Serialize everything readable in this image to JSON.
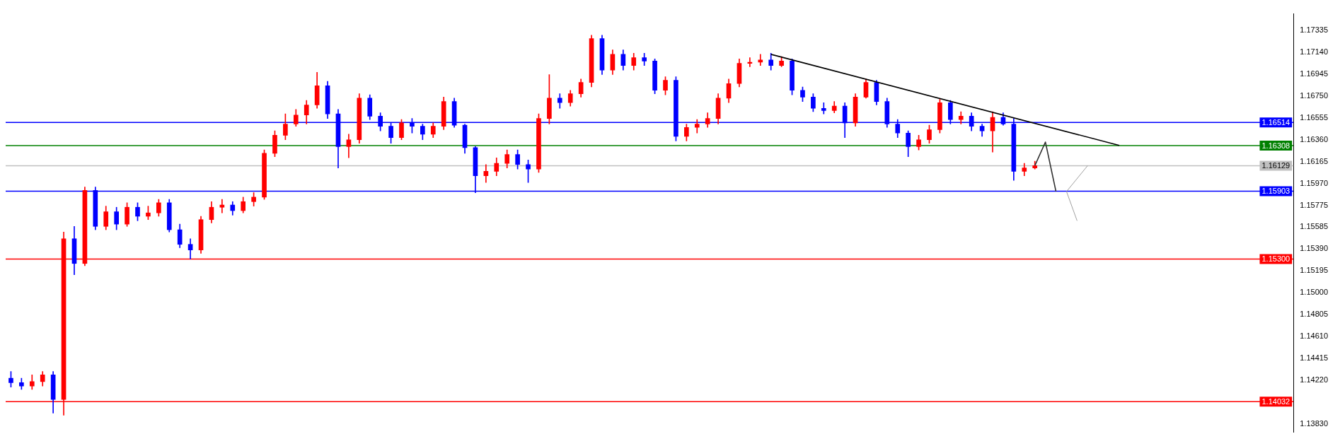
{
  "chart_data": {
    "type": "candlestick",
    "categories": [
      null,
      null,
      null,
      null,
      null,
      null,
      null,
      null,
      null,
      null,
      null,
      null,
      null,
      null,
      null,
      null,
      null,
      null,
      null,
      null,
      null,
      null,
      null,
      null,
      null,
      null,
      null,
      null,
      null,
      null,
      null,
      null,
      null,
      null,
      null,
      null,
      null,
      null,
      null,
      null,
      null,
      null,
      null,
      null,
      null,
      null,
      null,
      null,
      null,
      null,
      null,
      null,
      null,
      null,
      null,
      null,
      null,
      null,
      null,
      null,
      null,
      null,
      null,
      null,
      null,
      null,
      null,
      null,
      null,
      null,
      null,
      null,
      null,
      null,
      null,
      null,
      null,
      null,
      null,
      null,
      null,
      null,
      null,
      null,
      null,
      null,
      null,
      null,
      null,
      null,
      null,
      null,
      null,
      null,
      null,
      null,
      null,
      null,
      null,
      null,
      null,
      null,
      null,
      null,
      null,
      null,
      null,
      null,
      null,
      null,
      null,
      null,
      null,
      null,
      null,
      null,
      null,
      null,
      null,
      null,
      null,
      null
    ],
    "ohlc": [
      [
        1.1424,
        1.143,
        1.1416,
        1.142
      ],
      [
        1.142,
        1.1424,
        1.1414,
        1.1417
      ],
      [
        1.1417,
        1.1427,
        1.1414,
        1.1421
      ],
      [
        1.1421,
        1.143,
        1.1417,
        1.1427
      ],
      [
        1.1427,
        1.143,
        1.1393,
        1.1405
      ],
      [
        1.1405,
        1.1554,
        1.1391,
        1.1548
      ],
      [
        1.1548,
        1.1559,
        1.1516,
        1.1526
      ],
      [
        1.1526,
        1.1594,
        1.1524,
        1.1591
      ],
      [
        1.1591,
        1.1594,
        1.1556,
        1.1559
      ],
      [
        1.1559,
        1.1577,
        1.1556,
        1.1572
      ],
      [
        1.1572,
        1.1576,
        1.1556,
        1.1561
      ],
      [
        1.1561,
        1.158,
        1.1559,
        1.1576
      ],
      [
        1.1576,
        1.158,
        1.1564,
        1.1568
      ],
      [
        1.1568,
        1.1577,
        1.1565,
        1.1571
      ],
      [
        1.1571,
        1.1583,
        1.1568,
        1.158
      ],
      [
        1.158,
        1.1583,
        1.1554,
        1.1556
      ],
      [
        1.1556,
        1.1561,
        1.154,
        1.1543
      ],
      [
        1.1543,
        1.1548,
        1.153,
        1.1538
      ],
      [
        1.1538,
        1.1568,
        1.1535,
        1.1565
      ],
      [
        1.1565,
        1.1581,
        1.1562,
        1.1576
      ],
      [
        1.1576,
        1.1583,
        1.1571,
        1.1578
      ],
      [
        1.1578,
        1.1581,
        1.1569,
        1.1573
      ],
      [
        1.1573,
        1.1585,
        1.1571,
        1.1581
      ],
      [
        1.1581,
        1.1589,
        1.1577,
        1.1585
      ],
      [
        1.1585,
        1.1627,
        1.1583,
        1.1624
      ],
      [
        1.1624,
        1.1644,
        1.1621,
        1.164
      ],
      [
        1.164,
        1.1659,
        1.1636,
        1.165
      ],
      [
        1.165,
        1.1663,
        1.1648,
        1.1658
      ],
      [
        1.1658,
        1.1671,
        1.165,
        1.1667
      ],
      [
        1.1667,
        1.1696,
        1.1664,
        1.1684
      ],
      [
        1.1684,
        1.1688,
        1.1655,
        1.1659
      ],
      [
        1.1659,
        1.1663,
        1.1611,
        1.163
      ],
      [
        1.163,
        1.1641,
        1.162,
        1.1636
      ],
      [
        1.1636,
        1.1677,
        1.1633,
        1.1673
      ],
      [
        1.1673,
        1.1676,
        1.1654,
        1.1657
      ],
      [
        1.1657,
        1.166,
        1.1644,
        1.1648
      ],
      [
        1.1648,
        1.1651,
        1.1633,
        1.1638
      ],
      [
        1.1638,
        1.1654,
        1.1636,
        1.1651
      ],
      [
        1.1651,
        1.1655,
        1.1642,
        1.1648
      ],
      [
        1.1648,
        1.165,
        1.1636,
        1.1641
      ],
      [
        1.1641,
        1.1651,
        1.1638,
        1.1648
      ],
      [
        1.1648,
        1.1674,
        1.1645,
        1.167
      ],
      [
        1.167,
        1.1673,
        1.1647,
        1.1649
      ],
      [
        1.1649,
        1.165,
        1.1624,
        1.1629
      ],
      [
        1.1629,
        1.163,
        1.1589,
        1.1604
      ],
      [
        1.1604,
        1.1614,
        1.1598,
        1.1608
      ],
      [
        1.1608,
        1.162,
        1.1604,
        1.1615
      ],
      [
        1.1615,
        1.1627,
        1.1611,
        1.1623
      ],
      [
        1.1623,
        1.1627,
        1.161,
        1.1614
      ],
      [
        1.1614,
        1.1618,
        1.1598,
        1.161
      ],
      [
        1.161,
        1.1659,
        1.1607,
        1.1655
      ],
      [
        1.1655,
        1.1694,
        1.165,
        1.1673
      ],
      [
        1.1673,
        1.1677,
        1.1664,
        1.1669
      ],
      [
        1.1669,
        1.168,
        1.1666,
        1.1677
      ],
      [
        1.1677,
        1.169,
        1.1674,
        1.1687
      ],
      [
        1.1687,
        1.1729,
        1.1683,
        1.1726
      ],
      [
        1.1726,
        1.1729,
        1.1694,
        1.1698
      ],
      [
        1.1698,
        1.1716,
        1.1694,
        1.1712
      ],
      [
        1.1712,
        1.1716,
        1.1698,
        1.1702
      ],
      [
        1.1702,
        1.1713,
        1.1698,
        1.1709
      ],
      [
        1.1709,
        1.1713,
        1.1702,
        1.1706
      ],
      [
        1.1706,
        1.1708,
        1.1677,
        1.168
      ],
      [
        1.168,
        1.1692,
        1.1676,
        1.1689
      ],
      [
        1.1689,
        1.1692,
        1.1635,
        1.1639
      ],
      [
        1.1639,
        1.165,
        1.1635,
        1.1647
      ],
      [
        1.1647,
        1.1654,
        1.1642,
        1.165
      ],
      [
        1.165,
        1.166,
        1.1647,
        1.1655
      ],
      [
        1.1655,
        1.1677,
        1.165,
        1.1673
      ],
      [
        1.1673,
        1.169,
        1.1669,
        1.1686
      ],
      [
        1.1686,
        1.1708,
        1.1683,
        1.1704
      ],
      [
        1.1704,
        1.1709,
        1.1701,
        1.1705
      ],
      [
        1.1705,
        1.1712,
        1.1702,
        1.1707
      ],
      [
        1.1707,
        1.1713,
        1.1698,
        1.1702
      ],
      [
        1.1702,
        1.171,
        1.1701,
        1.1706
      ],
      [
        1.1706,
        1.1708,
        1.1676,
        1.168
      ],
      [
        1.168,
        1.1683,
        1.167,
        1.1674
      ],
      [
        1.1674,
        1.1677,
        1.1661,
        1.1664
      ],
      [
        1.1664,
        1.1669,
        1.1659,
        1.1662
      ],
      [
        1.1662,
        1.167,
        1.166,
        1.1666
      ],
      [
        1.1666,
        1.1669,
        1.1638,
        1.1651
      ],
      [
        1.1651,
        1.1677,
        1.1648,
        1.1674
      ],
      [
        1.1674,
        1.169,
        1.1673,
        1.1687
      ],
      [
        1.1687,
        1.1689,
        1.1667,
        1.167
      ],
      [
        1.167,
        1.1673,
        1.1647,
        1.165
      ],
      [
        1.165,
        1.1654,
        1.1638,
        1.1642
      ],
      [
        1.1642,
        1.1644,
        1.1621,
        1.163
      ],
      [
        1.163,
        1.164,
        1.1627,
        1.1636
      ],
      [
        1.1636,
        1.1649,
        1.1633,
        1.1645
      ],
      [
        1.1645,
        1.1672,
        1.1642,
        1.1669
      ],
      [
        1.1669,
        1.1671,
        1.165,
        1.1654
      ],
      [
        1.1654,
        1.1661,
        1.165,
        1.1657
      ],
      [
        1.1657,
        1.166,
        1.1644,
        1.1648
      ],
      [
        1.1648,
        1.165,
        1.1639,
        1.1644
      ],
      [
        1.1644,
        1.1661,
        1.1625,
        1.1656
      ],
      [
        1.1656,
        1.166,
        1.1649,
        1.165
      ],
      [
        1.165,
        1.1655,
        1.16,
        1.1608
      ],
      [
        1.1608,
        1.1615,
        1.1604,
        1.1611
      ],
      [
        1.1611,
        1.1617,
        1.161,
        1.1613
      ],
      null,
      null,
      null,
      null,
      null,
      null,
      null,
      null,
      null,
      null,
      null,
      null,
      null,
      null,
      null,
      null,
      null,
      null,
      null,
      null,
      null,
      null,
      null,
      null
    ],
    "colors": [
      "#0000ff",
      "#0000ff",
      "#ff0000",
      "#ff0000",
      "#0000ff",
      "#ff0000",
      "#0000ff",
      "#ff0000",
      "#0000ff",
      "#ff0000",
      "#0000ff",
      "#ff0000",
      "#0000ff",
      "#ff0000",
      "#ff0000",
      "#0000ff",
      "#0000ff",
      "#0000ff",
      "#ff0000",
      "#ff0000",
      "#ff0000",
      "#0000ff",
      "#ff0000",
      "#ff0000",
      "#ff0000",
      "#ff0000",
      "#ff0000",
      "#ff0000",
      "#ff0000",
      "#ff0000",
      "#0000ff",
      "#0000ff",
      "#ff0000",
      "#ff0000",
      "#0000ff",
      "#0000ff",
      "#0000ff",
      "#ff0000",
      "#0000ff",
      "#0000ff",
      "#ff0000",
      "#ff0000",
      "#0000ff",
      "#0000ff",
      "#0000ff",
      "#ff0000",
      "#ff0000",
      "#ff0000",
      "#0000ff",
      "#0000ff",
      "#ff0000",
      "#ff0000",
      "#0000ff",
      "#ff0000",
      "#ff0000",
      "#ff0000",
      "#0000ff",
      "#ff0000",
      "#0000ff",
      "#ff0000",
      "#0000ff",
      "#0000ff",
      "#ff0000",
      "#0000ff",
      "#ff0000",
      "#ff0000",
      "#ff0000",
      "#ff0000",
      "#ff0000",
      "#ff0000",
      "#ff0000",
      "#ff0000",
      "#0000ff",
      "#ff0000",
      "#0000ff",
      "#0000ff",
      "#0000ff",
      "#0000ff",
      "#ff0000",
      "#0000ff",
      "#ff0000",
      "#ff0000",
      "#0000ff",
      "#0000ff",
      "#0000ff",
      "#0000ff",
      "#ff0000",
      "#ff0000",
      "#ff0000",
      "#0000ff",
      "#ff0000",
      "#0000ff",
      "#0000ff",
      "#ff0000",
      "#0000ff",
      "#0000ff",
      "#ff0000",
      "#ff0000",
      null,
      null,
      null,
      null,
      null,
      null,
      null,
      null,
      null,
      null,
      null,
      null,
      null,
      null,
      null,
      null,
      null,
      null,
      null,
      null,
      null,
      null,
      null,
      null
    ],
    "series": [
      {
        "type": "line",
        "color": "#000000",
        "values": [
          null,
          null,
          null,
          null,
          null,
          null,
          null,
          null,
          null,
          null,
          null,
          null,
          null,
          null,
          null,
          null,
          null,
          null,
          null,
          null,
          null,
          null,
          null,
          null,
          null,
          null,
          null,
          null,
          null,
          null,
          null,
          null,
          null,
          null,
          null,
          null,
          null,
          null,
          null,
          null,
          null,
          null,
          null,
          null,
          null,
          null,
          null,
          null,
          null,
          null,
          null,
          null,
          null,
          null,
          null,
          null,
          null,
          null,
          null,
          null,
          null,
          null,
          null,
          null,
          null,
          null,
          null,
          null,
          null,
          null,
          null,
          null,
          1.1712,
          null,
          null,
          null,
          null,
          null,
          null,
          null,
          null,
          null,
          null,
          null,
          null,
          null,
          null,
          null,
          null,
          null,
          null,
          null,
          null,
          null,
          null,
          null,
          null,
          null,
          null,
          null,
          null,
          null,
          null,
          null,
          null,
          1.1631,
          null,
          null,
          null,
          null,
          null,
          null,
          null,
          null,
          null,
          null,
          null,
          null,
          null,
          null,
          null,
          null
        ]
      },
      {
        "type": "line",
        "color": "#303030",
        "values": [
          null,
          null,
          null,
          null,
          null,
          null,
          null,
          null,
          null,
          null,
          null,
          null,
          null,
          null,
          null,
          null,
          null,
          null,
          null,
          null,
          null,
          null,
          null,
          null,
          null,
          null,
          null,
          null,
          null,
          null,
          null,
          null,
          null,
          null,
          null,
          null,
          null,
          null,
          null,
          null,
          null,
          null,
          null,
          null,
          null,
          null,
          null,
          null,
          null,
          null,
          null,
          null,
          null,
          null,
          null,
          null,
          null,
          null,
          null,
          null,
          null,
          null,
          null,
          null,
          null,
          null,
          null,
          null,
          null,
          null,
          null,
          null,
          null,
          null,
          null,
          null,
          null,
          null,
          null,
          null,
          null,
          null,
          null,
          null,
          null,
          null,
          null,
          null,
          null,
          null,
          null,
          null,
          null,
          null,
          null,
          null,
          null,
          1.1613,
          1.1634,
          1.159,
          null,
          null,
          null,
          null,
          null,
          null,
          null,
          null,
          null,
          null,
          null,
          null,
          null,
          null,
          null,
          null,
          null,
          null,
          null,
          null,
          null,
          null
        ]
      },
      {
        "type": "line",
        "color": "#a0a0a0",
        "values": [
          null,
          null,
          null,
          null,
          null,
          null,
          null,
          null,
          null,
          null,
          null,
          null,
          null,
          null,
          null,
          null,
          null,
          null,
          null,
          null,
          null,
          null,
          null,
          null,
          null,
          null,
          null,
          null,
          null,
          null,
          null,
          null,
          null,
          null,
          null,
          null,
          null,
          null,
          null,
          null,
          null,
          null,
          null,
          null,
          null,
          null,
          null,
          null,
          null,
          null,
          null,
          null,
          null,
          null,
          null,
          null,
          null,
          null,
          null,
          null,
          null,
          null,
          null,
          null,
          null,
          null,
          null,
          null,
          null,
          null,
          null,
          null,
          null,
          null,
          null,
          null,
          null,
          null,
          null,
          null,
          null,
          null,
          null,
          null,
          null,
          null,
          null,
          null,
          null,
          null,
          null,
          null,
          null,
          null,
          null,
          null,
          null,
          null,
          null,
          null,
          1.159,
          null,
          1.1613,
          null,
          null,
          null,
          null,
          null,
          null,
          null,
          null,
          null,
          null,
          null,
          null,
          null,
          null,
          null,
          null,
          null,
          null,
          null
        ]
      },
      {
        "type": "line",
        "color": "#a0a0a0",
        "values": [
          null,
          null,
          null,
          null,
          null,
          null,
          null,
          null,
          null,
          null,
          null,
          null,
          null,
          null,
          null,
          null,
          null,
          null,
          null,
          null,
          null,
          null,
          null,
          null,
          null,
          null,
          null,
          null,
          null,
          null,
          null,
          null,
          null,
          null,
          null,
          null,
          null,
          null,
          null,
          null,
          null,
          null,
          null,
          null,
          null,
          null,
          null,
          null,
          null,
          null,
          null,
          null,
          null,
          null,
          null,
          null,
          null,
          null,
          null,
          null,
          null,
          null,
          null,
          null,
          null,
          null,
          null,
          null,
          null,
          null,
          null,
          null,
          null,
          null,
          null,
          null,
          null,
          null,
          null,
          null,
          null,
          null,
          null,
          null,
          null,
          null,
          null,
          null,
          null,
          null,
          null,
          null,
          null,
          null,
          null,
          null,
          null,
          null,
          null,
          null,
          1.159,
          1.1564,
          null,
          null,
          null,
          null,
          null,
          null,
          null,
          null,
          null,
          null,
          null,
          null,
          null,
          null,
          null,
          null,
          null,
          null,
          null,
          null
        ]
      }
    ],
    "ylim": [
      1.1376,
      1.1748
    ],
    "yticks": [
      1.17335,
      {
        "value": 1.1714,
        "label": "1.17140"
      },
      1.16945,
      {
        "value": 1.1675,
        "label": "1.16750"
      },
      1.16555,
      {
        "value": 1.1636,
        "label": "1.16360"
      },
      1.16165,
      {
        "value": 1.1597,
        "label": "1.15970"
      },
      1.15775,
      1.15585,
      {
        "value": 1.1539,
        "label": "1.15390"
      },
      1.15195,
      {
        "value": 1.15,
        "label": "1.15000"
      },
      1.14805,
      {
        "value": 1.1461,
        "label": "1.14610"
      },
      1.14415,
      {
        "value": 1.1422,
        "label": "1.14220"
      },
      {
        "value": 1.1383,
        "label": "1.13830"
      }
    ],
    "ref_lines": [
      {
        "axis": "y",
        "value": 1.16514,
        "label": "1.16514",
        "color": "#0000ff"
      },
      {
        "axis": "y",
        "value": 1.16308,
        "label": "1.16308",
        "color": "#008000"
      },
      {
        "axis": "y",
        "value": 1.16129,
        "label": "1.16129",
        "color": "#c0c0c0"
      },
      {
        "axis": "y",
        "value": 1.15903,
        "label": "1.15903",
        "color": "#0000ff"
      },
      {
        "axis": "y",
        "value": 1.153,
        "label": "1.15300",
        "color": "#ff0000"
      },
      {
        "axis": "y",
        "value": 1.14032,
        "label": "1.14032",
        "color": "#ff0000"
      }
    ]
  }
}
